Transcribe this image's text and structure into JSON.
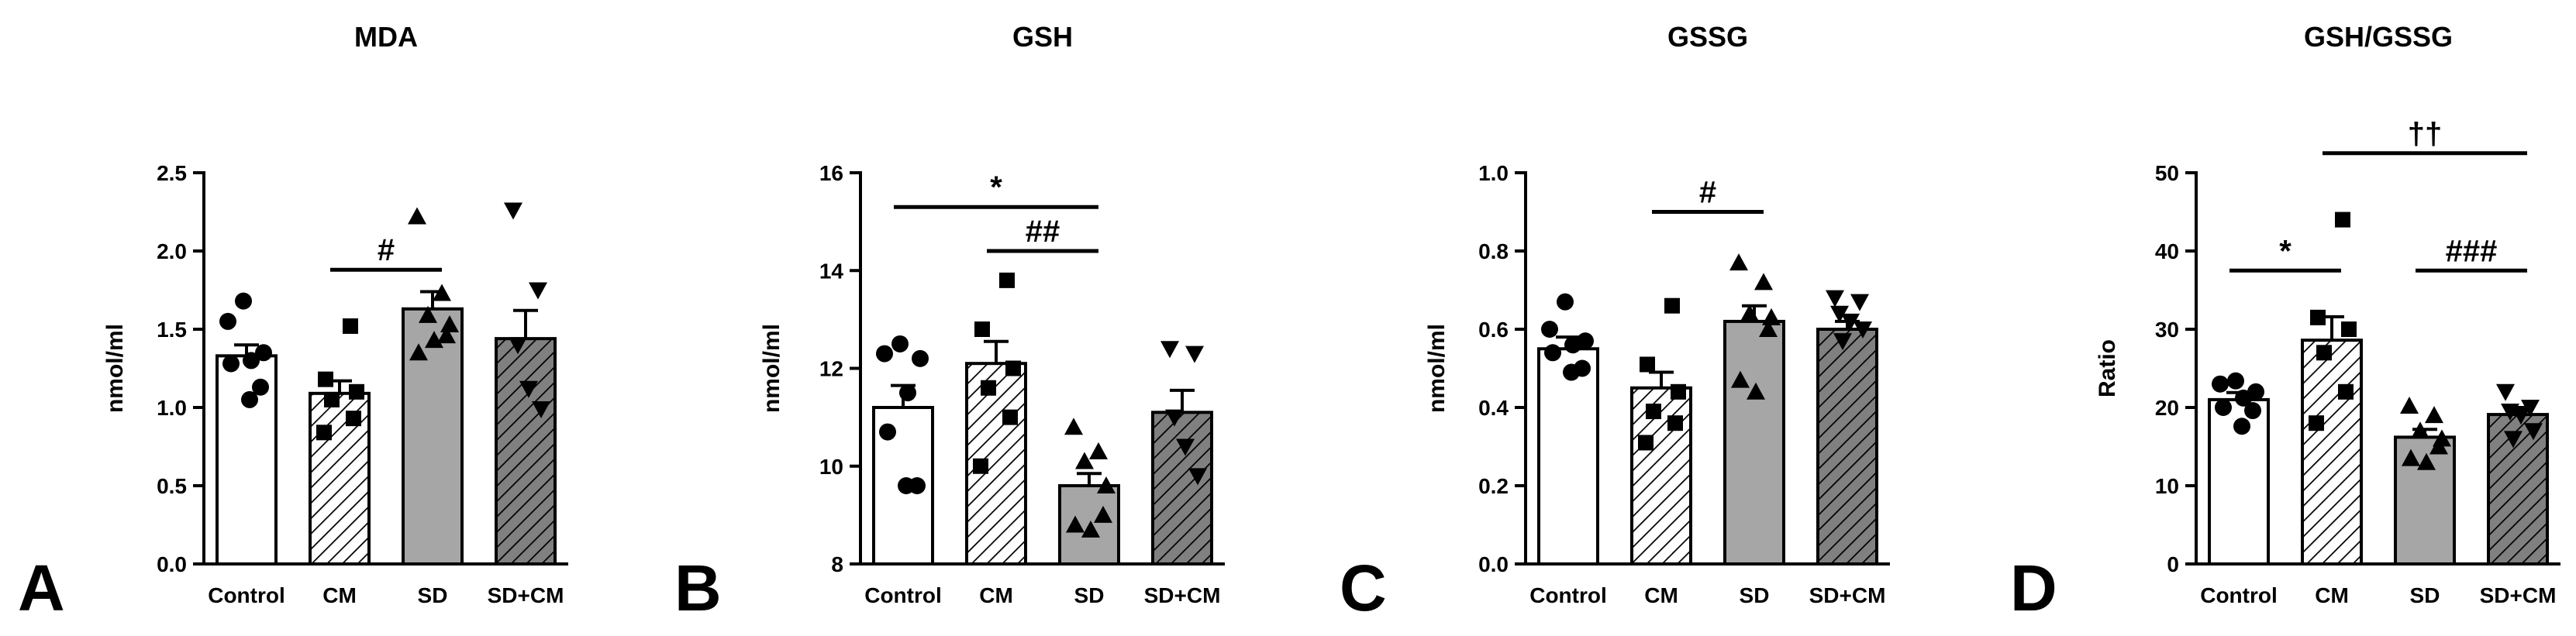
{
  "chart_data": [
    {
      "type": "bar",
      "panel": "A",
      "title": "MDA",
      "ylabel": "nmol/ml",
      "ylim": [
        0,
        2.5
      ],
      "yticks": [
        "0.0",
        "0.5",
        "1.0",
        "1.5",
        "2.0",
        "2.5"
      ],
      "categories": [
        "Control",
        "CM",
        "SD",
        "SD+CM"
      ],
      "values": [
        1.33,
        1.09,
        1.63,
        1.44
      ],
      "sem": [
        0.07,
        0.08,
        0.11,
        0.18
      ],
      "points": [
        [
          1.68,
          1.55,
          1.35,
          1.3,
          1.28,
          1.13,
          1.05
        ],
        [
          1.52,
          1.18,
          1.1,
          1.05,
          0.93,
          0.84
        ],
        [
          2.22,
          1.73,
          1.59,
          1.53,
          1.46,
          1.35,
          1.43
        ],
        [
          2.26,
          1.75,
          1.4,
          1.12,
          0.99
        ]
      ],
      "significance": [
        {
          "label": "#",
          "from": 1,
          "to": 2,
          "level": 1.88
        }
      ]
    },
    {
      "type": "bar",
      "panel": "B",
      "title": "GSH",
      "ylabel": "nmol/ml",
      "ylim": [
        8,
        16
      ],
      "yticks": [
        "8",
        "10",
        "12",
        "14",
        "16"
      ],
      "categories": [
        "Control",
        "CM",
        "SD",
        "SD+CM"
      ],
      "values": [
        11.2,
        12.1,
        9.6,
        11.1
      ],
      "sem": [
        0.45,
        0.45,
        0.25,
        0.45
      ],
      "points": [
        [
          12.5,
          12.3,
          12.2,
          11.5,
          10.7,
          9.6,
          9.6
        ],
        [
          13.8,
          12.8,
          12.0,
          11.6,
          11.0,
          10.0
        ],
        [
          10.8,
          10.3,
          10.1,
          9.6,
          9.0,
          8.8,
          8.7
        ],
        [
          12.4,
          12.3,
          11.0,
          10.4,
          9.8
        ]
      ],
      "significance": [
        {
          "label": "*",
          "from": 0,
          "to": 2,
          "level": 15.3
        },
        {
          "label": "##",
          "from": 1,
          "to": 2,
          "level": 14.4
        }
      ]
    },
    {
      "type": "bar",
      "panel": "C",
      "title": "GSSG",
      "ylabel": "nmol/ml",
      "ylim": [
        0,
        1
      ],
      "yticks": [
        "0.0",
        "0.2",
        "0.4",
        "0.6",
        "0.8",
        "1.0"
      ],
      "categories": [
        "Control",
        "CM",
        "SD",
        "SD+CM"
      ],
      "values": [
        0.55,
        0.45,
        0.62,
        0.6
      ],
      "sem": [
        0.03,
        0.04,
        0.04,
        0.02
      ],
      "points": [
        [
          0.67,
          0.6,
          0.57,
          0.56,
          0.54,
          0.5,
          0.49
        ],
        [
          0.66,
          0.51,
          0.44,
          0.39,
          0.36,
          0.31
        ],
        [
          0.77,
          0.72,
          0.64,
          0.63,
          0.6,
          0.47,
          0.44
        ],
        [
          0.68,
          0.67,
          0.64,
          0.62,
          0.6,
          0.57
        ]
      ],
      "significance": [
        {
          "label": "#",
          "from": 1,
          "to": 2,
          "level": 0.9
        }
      ]
    },
    {
      "type": "bar",
      "panel": "D",
      "title": "GSH/GSSG",
      "ylabel": "Ratio",
      "ylim": [
        0,
        50
      ],
      "yticks": [
        "0",
        "10",
        "20",
        "30",
        "40",
        "50"
      ],
      "categories": [
        "Control",
        "CM",
        "SD",
        "SD+CM"
      ],
      "values": [
        21.0,
        28.6,
        16.2,
        19.1
      ],
      "sem": [
        0.9,
        3.0,
        1.0,
        0.9
      ],
      "points": [
        [
          23.4,
          23.0,
          22.0,
          21.2,
          20.0,
          19.6,
          17.6
        ],
        [
          44.0,
          31.5,
          30.0,
          27.0,
          22.0,
          18.0
        ],
        [
          20.2,
          19.0,
          17.0,
          16.0,
          15.0,
          13.5,
          13.0
        ],
        [
          22.0,
          20.0,
          19.5,
          19.0,
          17.0,
          16.0
        ]
      ],
      "significance": [
        {
          "label": "*",
          "from": 0,
          "to": 1,
          "level": 37.5
        },
        {
          "label": "###",
          "from": 2,
          "to": 3,
          "level": 37.5
        },
        {
          "label": "††",
          "from": 1,
          "to": 3,
          "level": 52.5
        }
      ]
    }
  ],
  "colors": {
    "control_fill": "#ffffff",
    "cm_fill": "hatch",
    "sd_fill": "#a6a6a6",
    "sdcm_fill": "#808080",
    "ink": "#000000"
  },
  "markers": [
    "circle",
    "square",
    "triangle-up",
    "triangle-down"
  ]
}
